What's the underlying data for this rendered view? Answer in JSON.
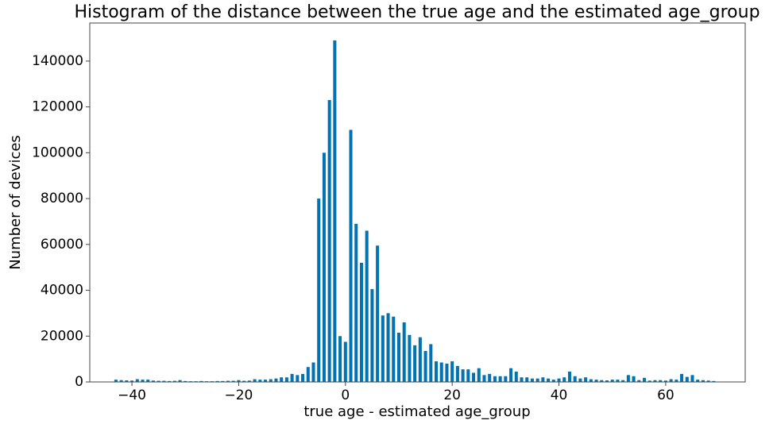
{
  "chart_data": {
    "type": "histogram",
    "title": "Histogram of the distance between the true age and the estimated age_group",
    "xlabel": "true age - estimated age_group",
    "ylabel": "Number of devices",
    "color": "#0173b2",
    "rwidth": 0.6,
    "bins": [
      -43.5,
      -42.5,
      -41.5,
      -40.5,
      -39.5,
      -38.5,
      -37.5,
      -36.5,
      -35.5,
      -34.5,
      -33.5,
      -32.5,
      -31.5,
      -30.5,
      -29.5,
      -28.5,
      -27.5,
      -26.5,
      -25.5,
      -24.5,
      -23.5,
      -22.5,
      -21.5,
      -20.5,
      -19.5,
      -18.5,
      -17.5,
      -16.5,
      -15.5,
      -14.5,
      -13.5,
      -12.5,
      -11.5,
      -10.5,
      -9.5,
      -8.5,
      -7.5,
      -6.5,
      -5.5,
      -4.5,
      -3.5,
      -2.5,
      -1.5,
      -0.5,
      0.5,
      1.5,
      2.5,
      3.5,
      4.5,
      5.5,
      6.5,
      7.5,
      8.5,
      9.5,
      10.5,
      11.5,
      12.5,
      13.5,
      14.5,
      15.5,
      16.5,
      17.5,
      18.5,
      19.5,
      20.5,
      21.5,
      22.5,
      23.5,
      24.5,
      25.5,
      26.5,
      27.5,
      28.5,
      29.5,
      30.5,
      31.5,
      32.5,
      33.5,
      34.5,
      35.5,
      36.5,
      37.5,
      38.5,
      39.5,
      40.5,
      41.5,
      42.5,
      43.5,
      44.5,
      45.5,
      46.5,
      47.5,
      48.5,
      49.5,
      50.5,
      51.5,
      52.5,
      53.5,
      54.5,
      55.5,
      56.5,
      57.5,
      58.5,
      59.5,
      60.5,
      61.5,
      62.5,
      63.5,
      64.5,
      65.5,
      66.5,
      67.5,
      68.5,
      69.5
    ],
    "values": [
      1000,
      800,
      700,
      600,
      1200,
      1000,
      1000,
      600,
      500,
      500,
      400,
      500,
      800,
      400,
      300,
      300,
      400,
      300,
      300,
      400,
      400,
      500,
      500,
      800,
      500,
      600,
      1200,
      1000,
      1000,
      1200,
      1500,
      2000,
      2000,
      3500,
      3000,
      3500,
      6500,
      8500,
      80000,
      100000,
      123000,
      149000,
      20000,
      17500,
      110000,
      69000,
      52000,
      66000,
      40500,
      59500,
      29000,
      30000,
      28500,
      21500,
      26000,
      20500,
      16000,
      19500,
      13500,
      16500,
      9000,
      8500,
      8000,
      9000,
      7000,
      5500,
      5500,
      4000,
      6000,
      3000,
      3500,
      2500,
      2500,
      2500,
      6000,
      4500,
      2000,
      2000,
      1500,
      1500,
      2000,
      1500,
      1000,
      1500,
      2000,
      4500,
      2500,
      1500,
      2000,
      1200,
      1000,
      800,
      700,
      1000,
      1000,
      800,
      3000,
      2500,
      800,
      1800,
      600,
      800,
      800,
      600,
      1200,
      1000,
      3500,
      2200,
      3000,
      1000,
      800,
      600,
      400
    ],
    "xlim": [
      -47.9,
      74.9
    ],
    "xticks": [
      {
        "value": -40,
        "label": "−40"
      },
      {
        "value": -20,
        "label": "−20"
      },
      0,
      20,
      40,
      60
    ],
    "ylim": [
      0,
      156600
    ],
    "yticks": [
      0,
      20000,
      40000,
      60000,
      80000,
      100000,
      120000,
      140000
    ]
  }
}
